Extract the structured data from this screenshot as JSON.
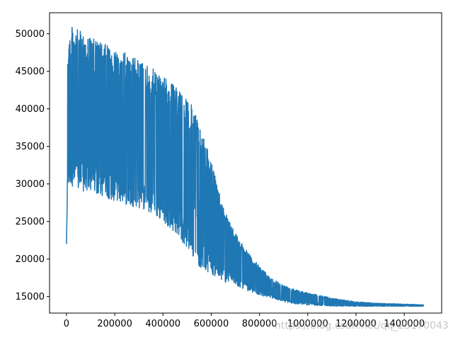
{
  "watermark": "https://blog.csdn.net/qq_25170043",
  "chart_data": {
    "type": "line",
    "title": "",
    "xlabel": "",
    "ylabel": "",
    "xlim": [
      -70000,
      1555000
    ],
    "ylim": [
      12800,
      52800
    ],
    "grid": false,
    "legend": "none",
    "line_color": "#1f77b4",
    "x_ticks": [
      0,
      200000,
      400000,
      600000,
      800000,
      1000000,
      1200000,
      1400000
    ],
    "x_tick_labels": [
      "0",
      "200000",
      "400000",
      "600000",
      "800000",
      "1000000",
      "1200000",
      "1400000"
    ],
    "y_ticks": [
      15000,
      20000,
      25000,
      30000,
      35000,
      40000,
      45000,
      50000
    ],
    "y_tick_labels": [
      "15000",
      "20000",
      "25000",
      "30000",
      "35000",
      "40000",
      "45000",
      "50000"
    ],
    "series": [
      {
        "x": [
          0,
          5000,
          20000,
          50000,
          100000,
          150000,
          200000,
          250000,
          300000,
          350000,
          400000,
          450000,
          500000,
          550000,
          600000,
          650000,
          700000,
          750000,
          800000,
          850000,
          900000,
          950000,
          1000000,
          1050000,
          1100000,
          1200000,
          1300000,
          1400000,
          1480000
        ],
        "upper": [
          22000,
          49000,
          51000,
          50500,
          49500,
          48800,
          48000,
          47500,
          46500,
          45500,
          44500,
          43000,
          42000,
          38000,
          33000,
          27000,
          23500,
          21000,
          19000,
          17500,
          16500,
          16000,
          15500,
          15200,
          14800,
          14300,
          14100,
          14000,
          13900
        ],
        "lower": [
          22000,
          29500,
          29800,
          29000,
          28800,
          28300,
          27700,
          27200,
          26800,
          26000,
          25000,
          23500,
          21500,
          19000,
          18000,
          17000,
          16500,
          15800,
          15200,
          14800,
          14300,
          14000,
          13900,
          13800,
          13700,
          13700,
          13700,
          13700,
          13700
        ]
      }
    ]
  }
}
